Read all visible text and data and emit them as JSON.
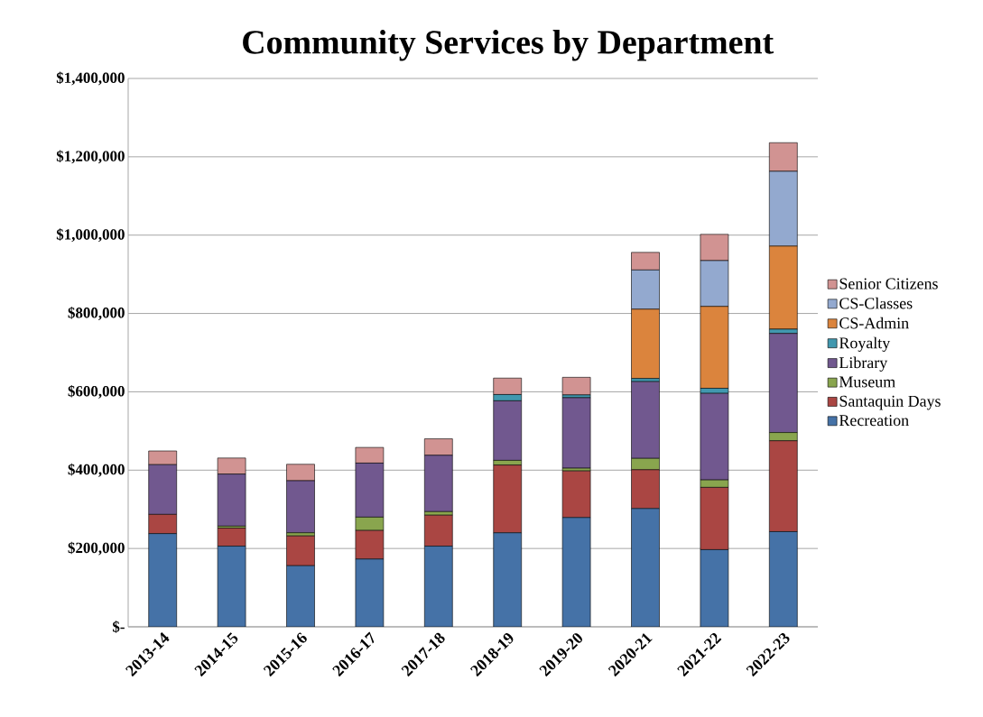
{
  "chart_data": {
    "type": "bar",
    "title": "Community Services by Department",
    "stacked": true,
    "categories": [
      "2013-14",
      "2014-15",
      "2015-16",
      "2016-17",
      "2017-18",
      "2018-19",
      "2019-20",
      "2020-21",
      "2021-22",
      "2022-23"
    ],
    "series": [
      {
        "name": "Recreation",
        "color": "#4572a7",
        "values": [
          238000,
          206000,
          156000,
          173000,
          206000,
          240000,
          279000,
          302000,
          197000,
          243000
        ]
      },
      {
        "name": "Santaquin Days",
        "color": "#aa4643",
        "values": [
          49000,
          46000,
          76000,
          73000,
          79000,
          173000,
          119000,
          99000,
          159000,
          232000
        ]
      },
      {
        "name": "Museum",
        "color": "#89a54e",
        "values": [
          0,
          5000,
          8000,
          34000,
          9000,
          12000,
          7000,
          29000,
          19000,
          21000
        ]
      },
      {
        "name": "Library",
        "color": "#71588f",
        "values": [
          127000,
          133000,
          133000,
          138000,
          144000,
          152000,
          180000,
          196000,
          221000,
          253000
        ]
      },
      {
        "name": "Royalty",
        "color": "#4198af",
        "values": [
          0,
          0,
          0,
          0,
          0,
          16000,
          7000,
          8000,
          13000,
          11000
        ]
      },
      {
        "name": "CS-Admin",
        "color": "#db843d",
        "values": [
          0,
          0,
          0,
          0,
          0,
          0,
          0,
          177000,
          209000,
          212000
        ]
      },
      {
        "name": "CS-Classes",
        "color": "#93a9cf",
        "values": [
          0,
          0,
          0,
          0,
          0,
          0,
          0,
          100000,
          117000,
          191000
        ]
      },
      {
        "name": "Senior Citizens",
        "color": "#d19392",
        "values": [
          35000,
          41000,
          42000,
          40000,
          42000,
          42000,
          45000,
          45000,
          67000,
          73000
        ]
      }
    ],
    "ylim": [
      0,
      1400000
    ],
    "yticks": [
      {
        "value": 0,
        "label": "$-"
      },
      {
        "value": 200000,
        "label": "$200,000"
      },
      {
        "value": 400000,
        "label": "$400,000"
      },
      {
        "value": 600000,
        "label": "$600,000"
      },
      {
        "value": 800000,
        "label": "$800,000"
      },
      {
        "value": 1000000,
        "label": "$1,000,000"
      },
      {
        "value": 1200000,
        "label": "$1,200,000"
      },
      {
        "value": 1400000,
        "label": "$1,400,000"
      }
    ],
    "grid": "y",
    "legend": "right"
  }
}
